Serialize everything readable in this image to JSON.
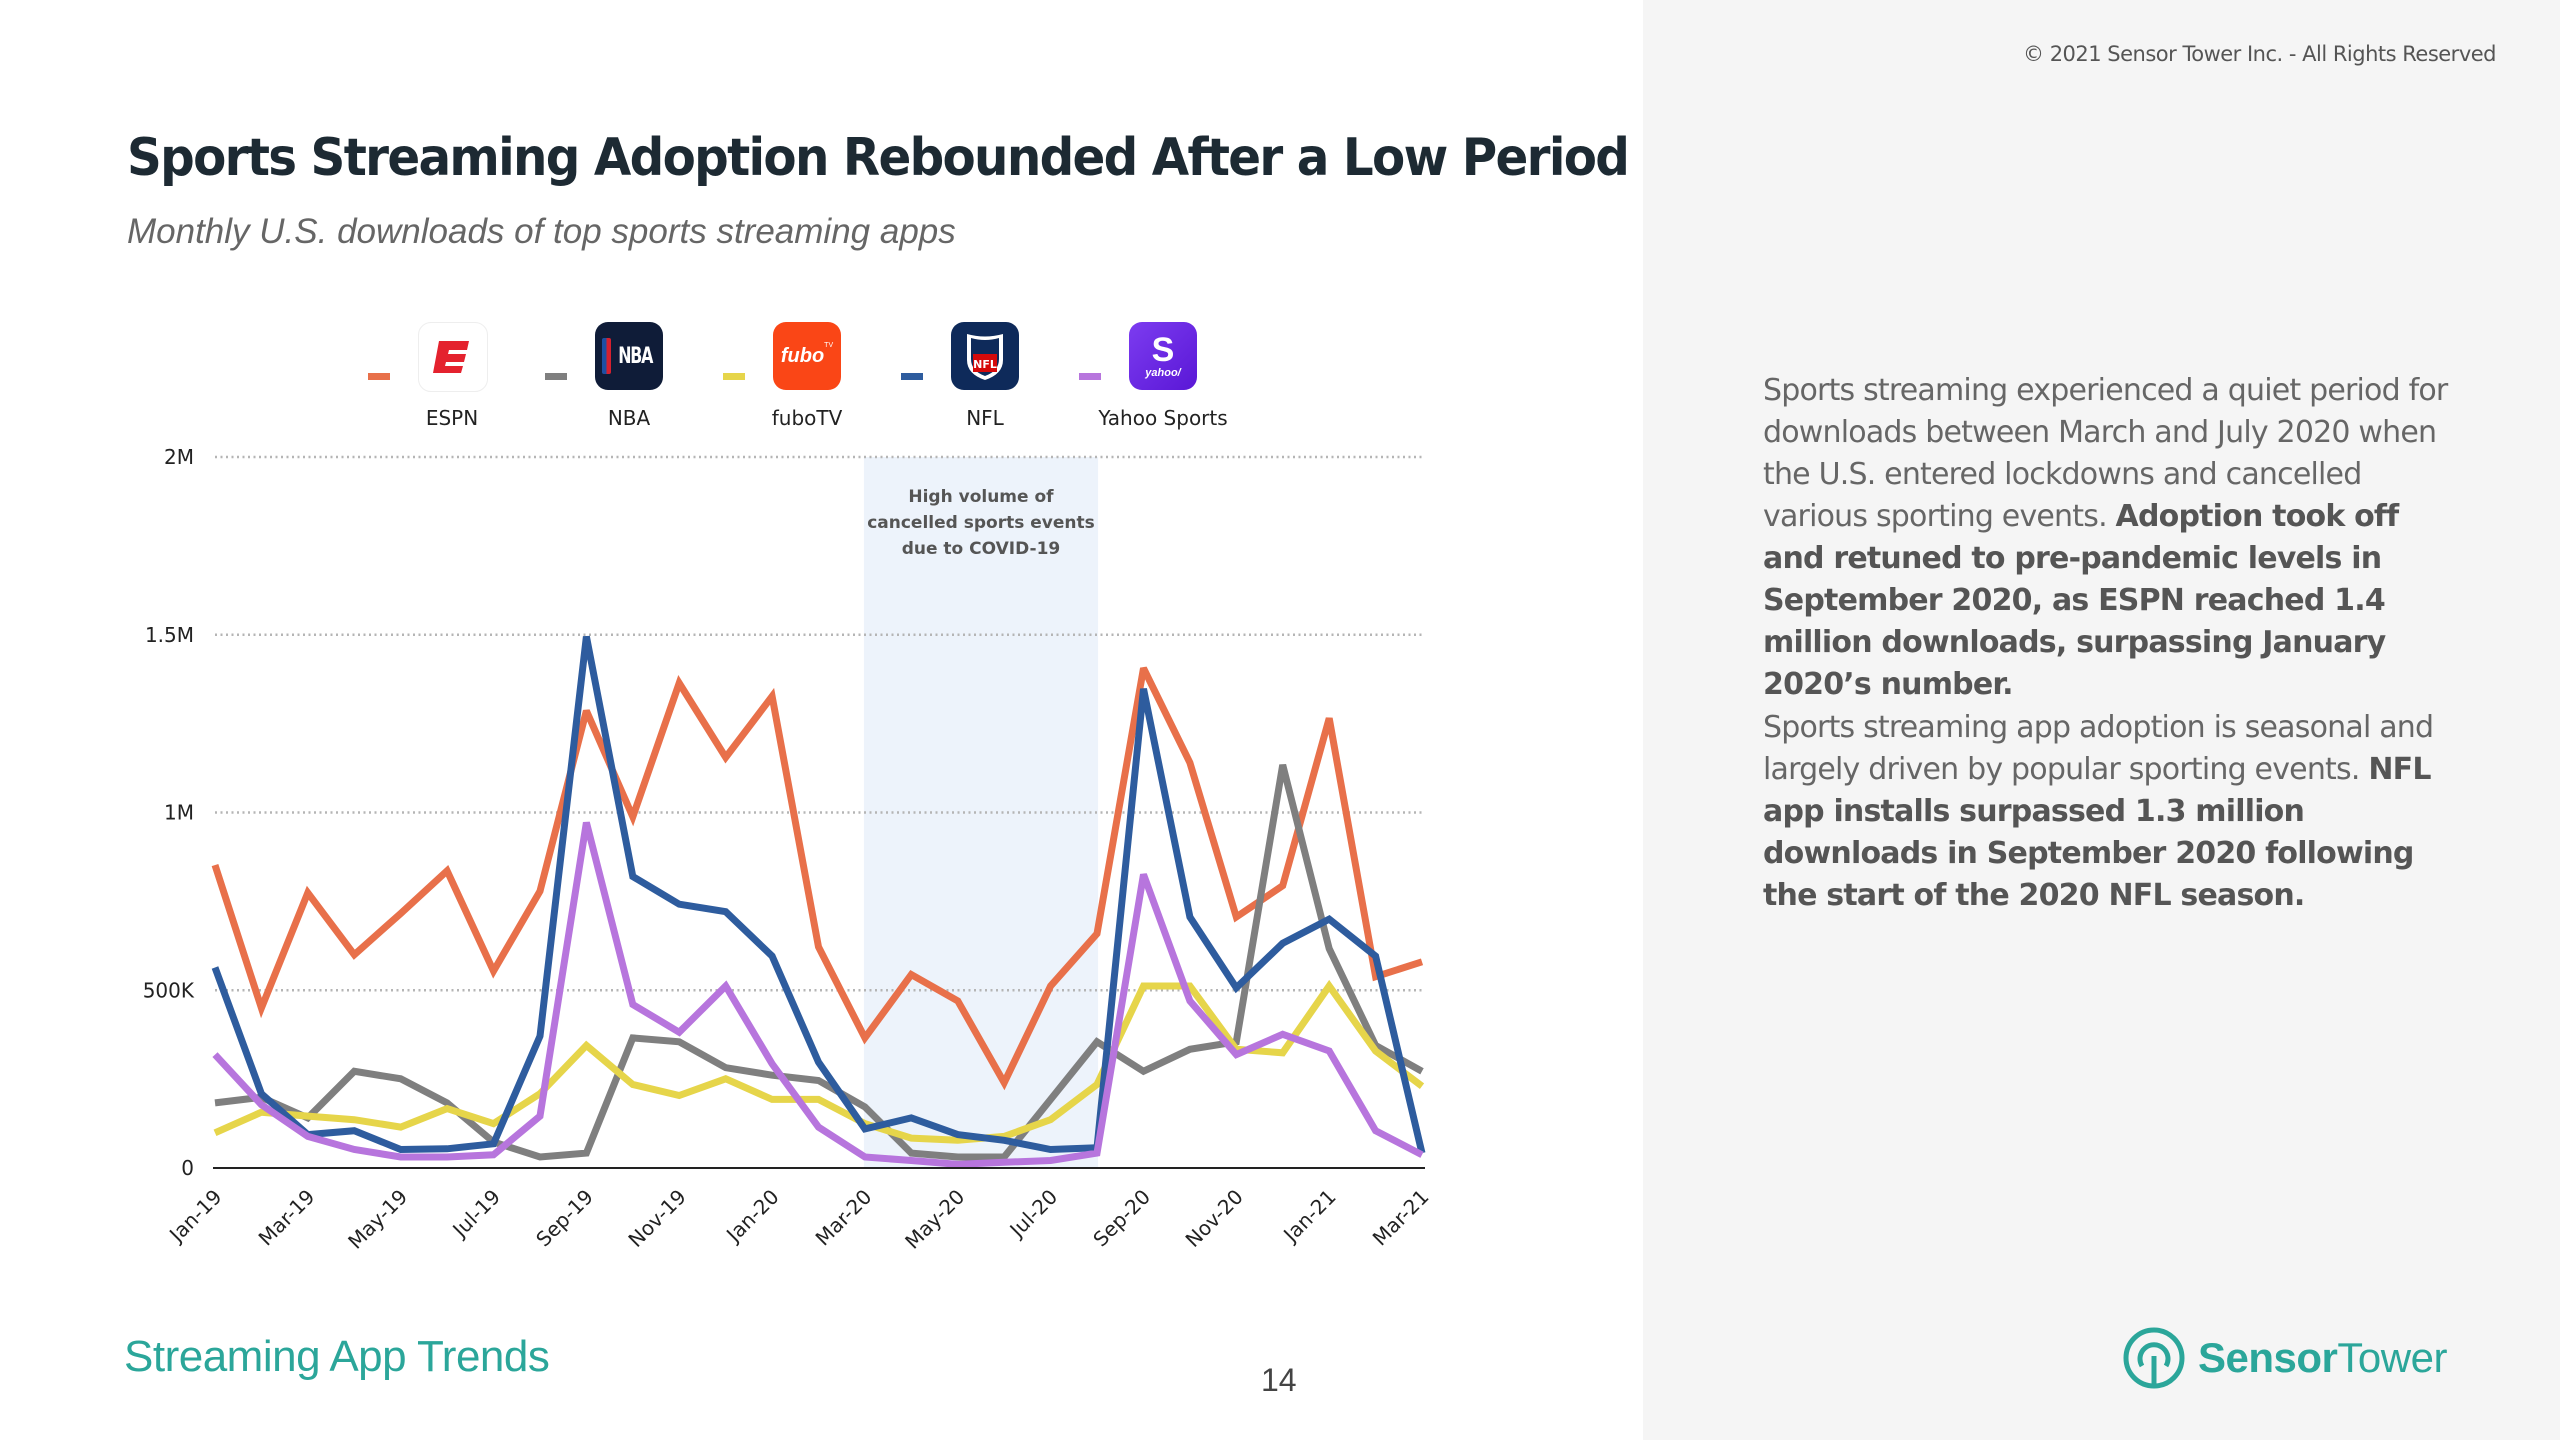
{
  "copyright": "© 2021 Sensor Tower Inc. - All Rights Reserved",
  "title": "Sports Streaming Adoption Rebounded After a Low Period",
  "subtitle": "Monthly U.S. downloads of top sports streaming apps",
  "legend": [
    {
      "name": "ESPN",
      "color": "#E8704A",
      "icon": "espn-app-icon"
    },
    {
      "name": "NBA",
      "color": "#7F7F7F",
      "icon": "nba-app-icon"
    },
    {
      "name": "fuboTV",
      "color": "#E6D54A",
      "icon": "fubotv-app-icon"
    },
    {
      "name": "NFL",
      "color": "#2E5C9E",
      "icon": "nfl-app-icon"
    },
    {
      "name": "Yahoo Sports",
      "color": "#B775DD",
      "icon": "yahoo-sports-app-icon"
    }
  ],
  "icon_text": {
    "espn": "E",
    "nba": "NBA",
    "fubo": "fubo",
    "fubo_tv": "TV",
    "nfl": "NFL",
    "yahoo_s": "S",
    "yahoo": "yahoo/"
  },
  "annotation": {
    "lines": [
      "High volume of",
      "cancelled sports events",
      "due to COVID-19"
    ],
    "from": "Mar-20",
    "to": "Aug-20",
    "fill": "#EDF3FB"
  },
  "chart_data": {
    "type": "line",
    "title": "Sports Streaming Adoption Rebounded After a Low Period",
    "subtitle": "Monthly U.S. downloads of top sports streaming apps",
    "xlabel": "",
    "ylabel": "",
    "ylim": [
      0,
      2000000
    ],
    "yticks": [
      0,
      500000,
      1000000,
      1500000,
      2000000
    ],
    "ytick_labels": [
      "0",
      "500K",
      "1M",
      "1.5M",
      "2M"
    ],
    "grid": true,
    "legend_position": "top",
    "x": [
      "Jan-19",
      "Feb-19",
      "Mar-19",
      "Apr-19",
      "May-19",
      "Jun-19",
      "Jul-19",
      "Aug-19",
      "Sep-19",
      "Oct-19",
      "Nov-19",
      "Dec-19",
      "Jan-20",
      "Feb-20",
      "Mar-20",
      "Apr-20",
      "May-20",
      "Jun-20",
      "Jul-20",
      "Aug-20",
      "Sep-20",
      "Oct-20",
      "Nov-20",
      "Dec-20",
      "Jan-21",
      "Feb-21",
      "Mar-21"
    ],
    "xtick_labels": [
      "Jan-19",
      "Mar-19",
      "May-19",
      "Jul-19",
      "Sep-19",
      "Nov-19",
      "Jan-20",
      "Mar-20",
      "May-20",
      "Jul-20",
      "Sep-20",
      "Nov-20",
      "Jan-21",
      "Mar-21"
    ],
    "series": [
      {
        "name": "ESPN",
        "color": "#E8704A",
        "values": [
          852000,
          450000,
          774000,
          600000,
          716000,
          836000,
          554000,
          779000,
          1286000,
          988000,
          1364000,
          1155000,
          1327000,
          622000,
          366000,
          544000,
          470000,
          240000,
          512000,
          659000,
          1406000,
          1140000,
          706000,
          794000,
          1265000,
          538000,
          580000
        ]
      },
      {
        "name": "NBA",
        "color": "#7F7F7F",
        "values": [
          183000,
          199000,
          141000,
          272000,
          251000,
          183000,
          73000,
          31000,
          42000,
          366000,
          355000,
          282000,
          261000,
          246000,
          172000,
          42000,
          31000,
          31000,
          193000,
          355000,
          272000,
          334000,
          355000,
          1134000,
          617000,
          345000,
          272000
        ]
      },
      {
        "name": "fuboTV",
        "color": "#E6D54A",
        "values": [
          99000,
          157000,
          146000,
          136000,
          115000,
          167000,
          125000,
          209000,
          345000,
          235000,
          204000,
          251000,
          193000,
          193000,
          125000,
          84000,
          78000,
          89000,
          136000,
          235000,
          512000,
          512000,
          334000,
          324000,
          512000,
          329000,
          230000
        ]
      },
      {
        "name": "NFL",
        "color": "#2E5C9E",
        "values": [
          564000,
          209000,
          94000,
          105000,
          52000,
          54000,
          68000,
          371000,
          1495000,
          820000,
          742000,
          721000,
          596000,
          298000,
          110000,
          141000,
          94000,
          78000,
          52000,
          57000,
          1348000,
          706000,
          507000,
          632000,
          700000,
          596000,
          42000
        ]
      },
      {
        "name": "Yahoo Sports",
        "color": "#B775DD",
        "values": [
          319000,
          178000,
          89000,
          52000,
          31000,
          31000,
          37000,
          146000,
          972000,
          460000,
          382000,
          512000,
          293000,
          115000,
          31000,
          21000,
          10000,
          16000,
          21000,
          42000,
          826000,
          470000,
          319000,
          376000,
          329000,
          105000,
          37000
        ]
      }
    ],
    "annotations": [
      {
        "text": "High volume of cancelled sports events due to COVID-19",
        "span": [
          "Mar-20",
          "Aug-20"
        ]
      }
    ]
  },
  "right_panel": {
    "paragraph1": {
      "normal": "Sports streaming experienced a quiet period for downloads between March and July 2020 when the U.S. entered lockdowns and cancelled various sporting events. ",
      "bold": "Adoption took off and retuned to pre-pandemic levels in September 2020, as ESPN reached 1.4 million downloads, surpassing January 2020’s number."
    },
    "paragraph2": {
      "normal": "Sports streaming app adoption is seasonal and largely driven by popular sporting events. ",
      "bold": "NFL app installs surpassed 1.3 million downloads in September 2020 following the start of the 2020 NFL season."
    }
  },
  "footer": {
    "section": "Streaming App Trends",
    "page_number": "14",
    "logo_bold": "Sensor",
    "logo_light": "Tower",
    "brand_color": "#2BA69A"
  }
}
